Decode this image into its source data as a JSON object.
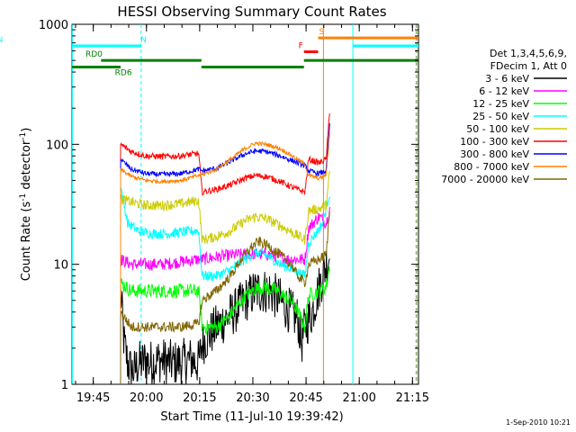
{
  "chart_data": {
    "type": "line",
    "title": "HESSI Observing Summary Count Rates",
    "xlabel": "Start Time (11-Jul-10 19:39:42)",
    "ylabel_main": "Count Rate (s",
    "ylabel_sup1": "-1",
    "ylabel_mid": " detector",
    "ylabel_sup2": "-1",
    "ylabel_end": ")",
    "y_scale": "log",
    "ylim": [
      1,
      1000
    ],
    "xlim_minutes": [
      -0.7,
      97
    ],
    "x_ticks": [
      {
        "label": "19:45",
        "m": 5.3
      },
      {
        "label": "20:00",
        "m": 20.3
      },
      {
        "label": "20:15",
        "m": 35.3
      },
      {
        "label": "20:30",
        "m": 50.3
      },
      {
        "label": "20:45",
        "m": 65.3
      },
      {
        "label": "21:00",
        "m": 80.3
      },
      {
        "label": "21:15",
        "m": 95.3
      }
    ],
    "y_ticks": [
      {
        "label": "1",
        "v": 1
      },
      {
        "label": "10",
        "v": 10
      },
      {
        "label": "100",
        "v": 100
      },
      {
        "label": "1000",
        "v": 1000
      }
    ],
    "legend": {
      "title_lines": [
        "Det 1,3,4,5,6,9,",
        "FDecim 1, Att 0"
      ],
      "position": "right"
    },
    "series": [
      {
        "name": "3 - 6 keV",
        "color": "#000000",
        "noise": 0.45,
        "p": [
          [
            13,
            6
          ],
          [
            14,
            2.2
          ],
          [
            15,
            1.5
          ],
          [
            16,
            1.3
          ],
          [
            17,
            1.3
          ],
          [
            18,
            1.5
          ],
          [
            19,
            1.5
          ],
          [
            20,
            1.6
          ],
          [
            21,
            1.5
          ],
          [
            24,
            1.6
          ],
          [
            28,
            1.5
          ],
          [
            33,
            1.6
          ],
          [
            35,
            1.5
          ],
          [
            36,
            2.2
          ],
          [
            40,
            3
          ],
          [
            45,
            4
          ],
          [
            48,
            5
          ],
          [
            51,
            6
          ],
          [
            55,
            6
          ],
          [
            58,
            5
          ],
          [
            61,
            4
          ],
          [
            63,
            3.5
          ],
          [
            64,
            2.2
          ],
          [
            65,
            3
          ],
          [
            67,
            4
          ],
          [
            68,
            5
          ],
          [
            69,
            6.5
          ],
          [
            70,
            8
          ],
          [
            71,
            10
          ],
          [
            72,
            12
          ]
        ]
      },
      {
        "name": "6 - 12 keV",
        "color": "#ff00ff",
        "noise": 0.12,
        "p": [
          [
            13,
            11
          ],
          [
            16,
            10
          ],
          [
            20,
            10
          ],
          [
            25,
            10
          ],
          [
            30,
            10.5
          ],
          [
            35,
            11
          ],
          [
            36,
            11
          ],
          [
            40,
            11.5
          ],
          [
            45,
            12
          ],
          [
            50,
            12.2
          ],
          [
            55,
            12
          ],
          [
            60,
            11
          ],
          [
            65,
            11
          ],
          [
            66,
            20
          ],
          [
            69,
            25
          ],
          [
            71,
            22
          ],
          [
            72,
            30
          ]
        ]
      },
      {
        "name": "12 - 25 keV",
        "color": "#00ff00",
        "noise": 0.14,
        "p": [
          [
            13,
            7
          ],
          [
            16,
            6
          ],
          [
            20,
            6
          ],
          [
            25,
            6
          ],
          [
            30,
            6
          ],
          [
            35,
            6
          ],
          [
            36,
            3
          ],
          [
            40,
            3
          ],
          [
            43,
            3.5
          ],
          [
            47,
            5
          ],
          [
            50,
            6
          ],
          [
            53,
            6.5
          ],
          [
            57,
            6
          ],
          [
            61,
            5
          ],
          [
            63,
            4
          ],
          [
            65,
            3
          ],
          [
            66,
            5.5
          ],
          [
            69,
            6
          ],
          [
            71,
            6.5
          ],
          [
            72,
            10
          ]
        ]
      },
      {
        "name": "25 - 50 keV",
        "color": "#00ffff",
        "noise": 0.1,
        "p": [
          [
            13,
            45
          ],
          [
            15,
            22
          ],
          [
            18,
            19
          ],
          [
            22,
            18
          ],
          [
            26,
            18
          ],
          [
            30,
            18.5
          ],
          [
            34,
            19
          ],
          [
            35,
            19
          ],
          [
            36,
            8
          ],
          [
            40,
            8
          ],
          [
            44,
            9
          ],
          [
            48,
            11
          ],
          [
            51,
            12.5
          ],
          [
            54,
            12
          ],
          [
            58,
            10
          ],
          [
            62,
            9
          ],
          [
            65,
            8
          ],
          [
            66,
            15
          ],
          [
            68,
            18
          ],
          [
            70,
            22
          ],
          [
            72,
            40
          ]
        ]
      },
      {
        "name": "50 - 100 keV",
        "color": "#cccc00",
        "noise": 0.1,
        "p": [
          [
            13,
            35
          ],
          [
            16,
            33
          ],
          [
            20,
            31
          ],
          [
            25,
            31
          ],
          [
            30,
            32
          ],
          [
            35,
            34
          ],
          [
            36,
            16
          ],
          [
            40,
            17
          ],
          [
            44,
            19
          ],
          [
            48,
            23
          ],
          [
            51,
            25
          ],
          [
            54,
            24
          ],
          [
            58,
            21
          ],
          [
            62,
            18
          ],
          [
            65,
            16
          ],
          [
            66,
            28
          ],
          [
            69,
            29
          ],
          [
            71,
            31
          ],
          [
            72,
            60
          ]
        ]
      },
      {
        "name": "100 - 300 keV",
        "color": "#ff0000",
        "noise": 0.06,
        "p": [
          [
            13,
            100
          ],
          [
            16,
            87
          ],
          [
            20,
            80
          ],
          [
            25,
            79
          ],
          [
            30,
            80
          ],
          [
            35,
            84
          ],
          [
            36,
            40
          ],
          [
            40,
            42
          ],
          [
            44,
            46
          ],
          [
            48,
            52
          ],
          [
            51,
            55
          ],
          [
            54,
            54
          ],
          [
            58,
            49
          ],
          [
            62,
            43
          ],
          [
            65,
            40
          ],
          [
            66,
            75
          ],
          [
            69,
            70
          ],
          [
            71,
            75
          ],
          [
            72,
            200
          ]
        ]
      },
      {
        "name": "300 - 800 keV",
        "color": "#0000ff",
        "noise": 0.05,
        "p": [
          [
            13,
            75
          ],
          [
            16,
            62
          ],
          [
            20,
            57
          ],
          [
            25,
            56
          ],
          [
            30,
            57
          ],
          [
            35,
            62
          ],
          [
            36,
            60
          ],
          [
            40,
            63
          ],
          [
            44,
            72
          ],
          [
            48,
            83
          ],
          [
            51,
            88
          ],
          [
            54,
            87
          ],
          [
            58,
            80
          ],
          [
            62,
            72
          ],
          [
            65,
            66
          ],
          [
            66,
            60
          ],
          [
            69,
            57
          ],
          [
            71,
            60
          ],
          [
            72,
            150
          ]
        ]
      },
      {
        "name": "800 - 7000 keV",
        "color": "#ff8000",
        "noise": 0.04,
        "p": [
          [
            13,
            62
          ],
          [
            16,
            54
          ],
          [
            20,
            50
          ],
          [
            25,
            49
          ],
          [
            30,
            50
          ],
          [
            35,
            55
          ],
          [
            36,
            56
          ],
          [
            40,
            62
          ],
          [
            44,
            75
          ],
          [
            48,
            92
          ],
          [
            51,
            102
          ],
          [
            54,
            100
          ],
          [
            58,
            92
          ],
          [
            62,
            78
          ],
          [
            65,
            68
          ],
          [
            66,
            55
          ],
          [
            69,
            52
          ],
          [
            71,
            56
          ],
          [
            72,
            130
          ]
        ]
      },
      {
        "name": "7000 - 20000 keV",
        "color": "#806600",
        "noise": 0.1,
        "p": [
          [
            13,
            4
          ],
          [
            16,
            3
          ],
          [
            20,
            3
          ],
          [
            25,
            3
          ],
          [
            30,
            3
          ],
          [
            35,
            3.2
          ],
          [
            36,
            5
          ],
          [
            40,
            6
          ],
          [
            44,
            8
          ],
          [
            47,
            11
          ],
          [
            50,
            14
          ],
          [
            52,
            15.5
          ],
          [
            55,
            14
          ],
          [
            58,
            12
          ],
          [
            61,
            10
          ],
          [
            63,
            8
          ],
          [
            65,
            7
          ],
          [
            66,
            10
          ],
          [
            69,
            11
          ],
          [
            71,
            12
          ],
          [
            72,
            30
          ]
        ]
      }
    ],
    "flag_bars": [
      {
        "label": "N",
        "color": "#00ffff",
        "y": 660,
        "x0": -0.7,
        "x1": 18.8,
        "label_at": 19.5
      },
      {
        "label": "N",
        "color": "#00ffff",
        "y": 660,
        "x0": 78.5,
        "x1": 97
      },
      {
        "label": "RD0",
        "color": "#008000",
        "y": 500,
        "x0": 7.5,
        "x1": 13,
        "label_at": 5.5
      },
      {
        "label": "RD6",
        "color": "#008000",
        "y": 440,
        "x0": -0.7,
        "x1": 13,
        "label_at": 13.8
      },
      {
        "label": "",
        "color": "#008000",
        "y": 500,
        "x0": 13,
        "x1": 35.8
      },
      {
        "label": "",
        "color": "#008000",
        "y": 440,
        "x0": 35.8,
        "x1": 64.7
      },
      {
        "label": "",
        "color": "#008000",
        "y": 500,
        "x0": 64.7,
        "x1": 97
      },
      {
        "label": "F",
        "color": "#ff0000",
        "y": 590,
        "x0": 64.7,
        "x1": 68.7,
        "label_at": 63.8
      },
      {
        "label": "S",
        "color": "#ff8000",
        "y": 770,
        "x0": 70.5,
        "x1": 97,
        "label_at": 69.7
      },
      {
        "label": "",
        "color": "#ff8000",
        "y": 770,
        "x0": 68.7,
        "x1": 70.5
      }
    ],
    "vlines": [
      {
        "m": -0.6,
        "color": "#00ffff",
        "dashed": false
      },
      {
        "m": 18.8,
        "color": "#00ffff",
        "dashed": true
      },
      {
        "m": 70.2,
        "color": "#ff8000",
        "dashed": false
      },
      {
        "m": 78.5,
        "color": "#00ffff",
        "dashed": false
      },
      {
        "m": 96.3,
        "color": "#00ffff",
        "dashed": true
      },
      {
        "m": 96.5,
        "color": "#ff8000",
        "dashed": true
      }
    ],
    "footer": "1-Sep-2010 10:21"
  }
}
